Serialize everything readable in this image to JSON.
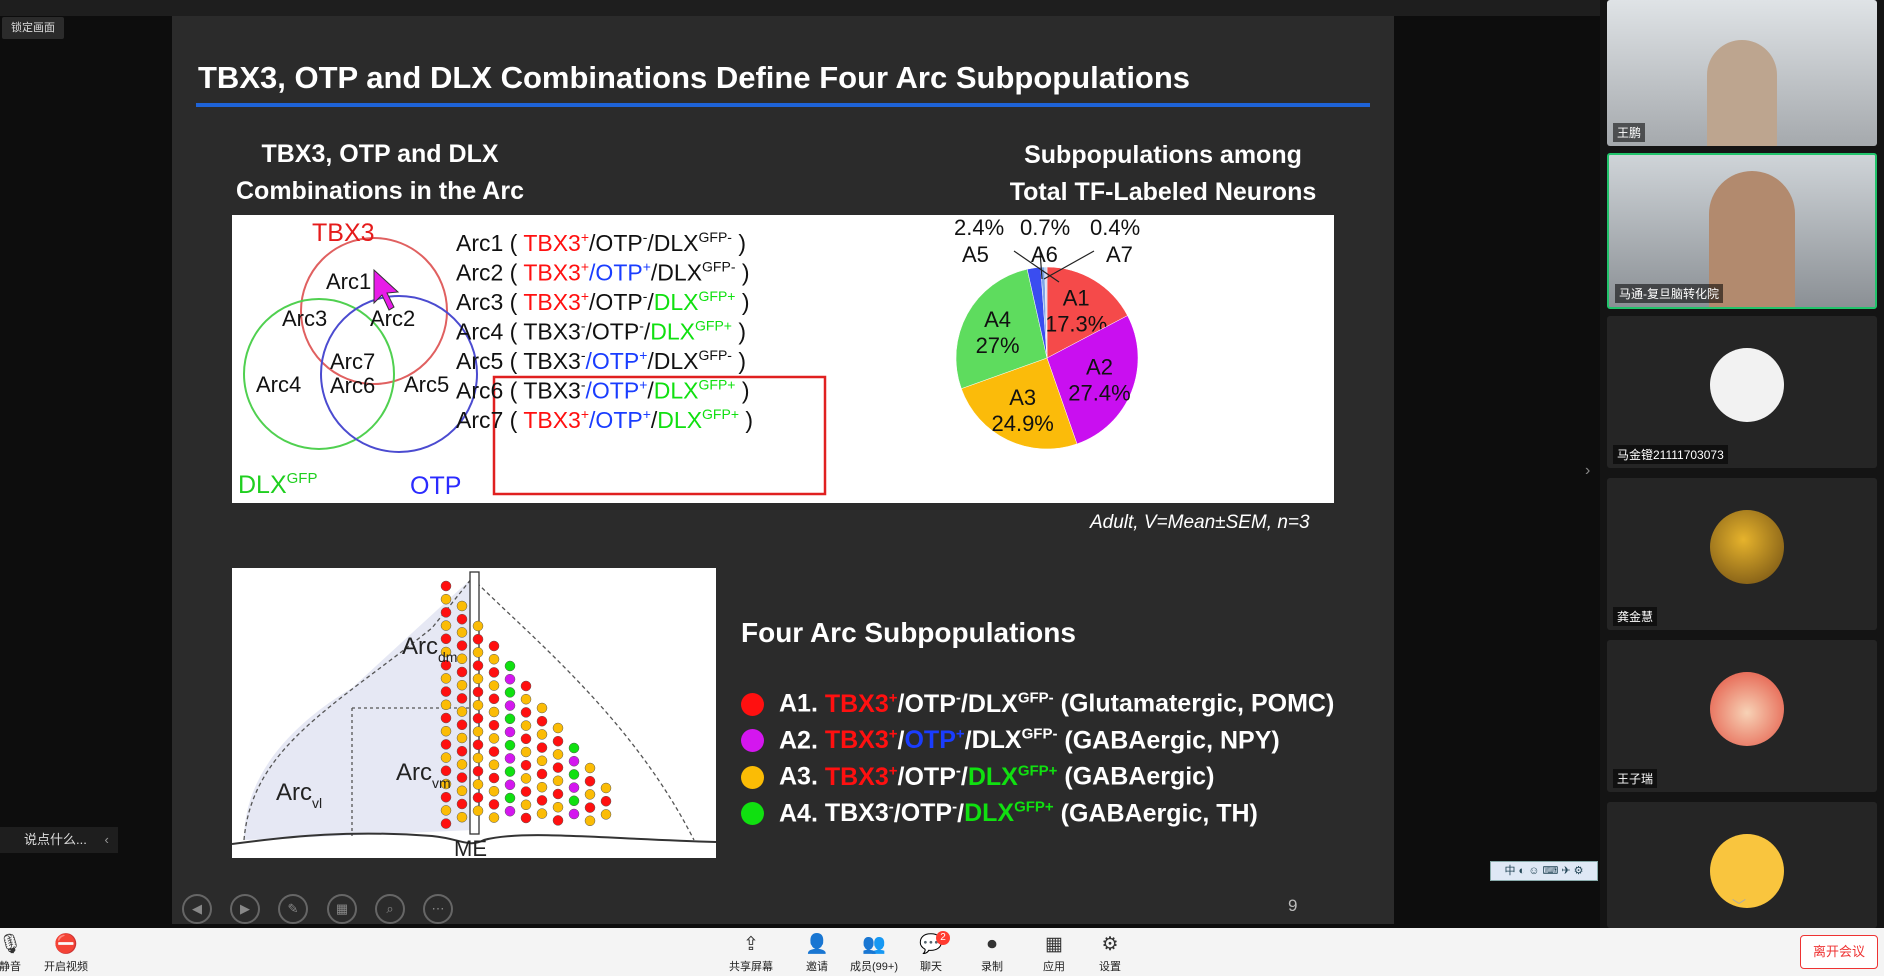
{
  "top": {
    "lock_label": "锁定画面"
  },
  "slide": {
    "title": "TBX3, OTP and DLX Combinations Define Four Arc Subpopulations",
    "venn_heading": [
      "TBX3, OTP and DLX",
      "Combinations in the Arc"
    ],
    "pie_heading": [
      "Subpopulations among",
      "Total TF-Labeled Neurons"
    ],
    "venn": {
      "tbx3": "TBX3",
      "dlx": "DLX",
      "dlx_sup": "GFP",
      "otp": "OTP",
      "regions": [
        "Arc1",
        "Arc2",
        "Arc3",
        "Arc4",
        "Arc5",
        "Arc6",
        "Arc7"
      ]
    },
    "arc_list": [
      {
        "name": "Arc1",
        "t": "+",
        "o": "-",
        "d": "GFP-"
      },
      {
        "name": "Arc2",
        "t": "+",
        "o": "+",
        "d": "GFP-"
      },
      {
        "name": "Arc3",
        "t": "+",
        "o": "-",
        "d": "GFP+"
      },
      {
        "name": "Arc4",
        "t": "-",
        "o": "-",
        "d": "GFP+"
      },
      {
        "name": "Arc5",
        "t": "-",
        "o": "+",
        "d": "GFP-"
      },
      {
        "name": "Arc6",
        "t": "-",
        "o": "+",
        "d": "GFP+"
      },
      {
        "name": "Arc7",
        "t": "+",
        "o": "+",
        "d": "GFP+"
      }
    ],
    "pie_top_labels": {
      "a5_pct": "2.4%",
      "a6_pct": "0.7%",
      "a7_pct": "0.4%",
      "a5": "A5",
      "a6": "A6",
      "a7": "A7"
    },
    "caption": "Adult, V=Mean±SEM, n=3",
    "diagram": {
      "dm": "Arc",
      "dm_sub": "dm",
      "vm": "Arc",
      "vm_sub": "vm",
      "vl": "Arc",
      "vl_sub": "vl",
      "me": "ME"
    },
    "legend_title": "Four Arc Subpopulations",
    "legend": [
      {
        "label": "A1.",
        "tbx3": "TBX3",
        "tbx3_sign": "+",
        "otp": "OTP",
        "otp_sign": "-",
        "dlx": "DLX",
        "dlx_sign": "GFP-",
        "desc": "(Glutamatergic, POMC)",
        "color": "#ff1010"
      },
      {
        "label": "A2.",
        "tbx3": "TBX3",
        "tbx3_sign": "+",
        "otp": "OTP",
        "otp_sign": "+",
        "dlx": "DLX",
        "dlx_sign": "GFP-",
        "desc": "(GABAergic, NPY)",
        "color": "#d416ef"
      },
      {
        "label": "A3.",
        "tbx3": "TBX3",
        "tbx3_sign": "+",
        "otp": "OTP",
        "otp_sign": "-",
        "dlx": "DLX",
        "dlx_sign": "GFP+",
        "desc": "(GABAergic)",
        "color": "#fbbc05"
      },
      {
        "label": "A4.",
        "tbx3": "TBX3",
        "tbx3_sign": "-",
        "otp": "OTP",
        "otp_sign": "-",
        "dlx": "DLX",
        "dlx_sign": "GFP+",
        "desc": "(GABAergic, TH)",
        "color": "#10e010"
      }
    ],
    "page_number": "9"
  },
  "chart_data": {
    "type": "pie",
    "title": "Subpopulations among Total TF-Labeled Neurons",
    "categories": [
      "A1",
      "A2",
      "A3",
      "A4",
      "A5",
      "A6",
      "A7"
    ],
    "values": [
      17.3,
      27.4,
      24.9,
      27,
      2.4,
      0.7,
      0.4
    ],
    "labels": [
      "17.3%",
      "27.4%",
      "24.9%",
      "27%",
      "2.4%",
      "0.7%",
      "0.4%"
    ],
    "colors": [
      "#f54a4a",
      "#c90ff0",
      "#fbbb0a",
      "#5edc5e",
      "#3a4df0",
      "#7fa6e6",
      "#c8d7f2"
    ]
  },
  "chat": {
    "prompt": "说点什么..."
  },
  "participants": [
    {
      "name": "王鹏"
    },
    {
      "name": "马通-复旦脑转化院"
    },
    {
      "name": "马金镫21111703073"
    },
    {
      "name": "龚金慧"
    },
    {
      "name": "王子瑞"
    },
    {
      "name": ""
    }
  ],
  "toolbar": {
    "mute": "静音",
    "video": "开启视频",
    "share": "共享屏幕",
    "invite": "邀请",
    "members": "成员(99+)",
    "chat": "聊天",
    "chat_badge": "2",
    "record": "录制",
    "apps": "应用",
    "settings": "设置",
    "leave": "离开会议"
  },
  "ime": {
    "text": "中 ◐ ☺ ⌨ ✈ ⚙"
  }
}
